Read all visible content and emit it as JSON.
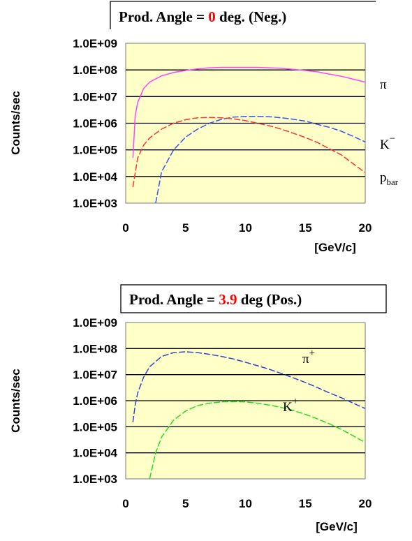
{
  "chart_data": [
    {
      "type": "line",
      "title_parts": [
        "Prod. Angle = ",
        "0",
        " deg. (Neg.)"
      ],
      "title_highlight_color": "#ff0000",
      "ylabel": "Counts/sec",
      "xlabel": "[GeV/c]",
      "y_scale": "log",
      "ylim": [
        1000,
        1000000000
      ],
      "xlim": [
        0,
        20
      ],
      "x_ticks": [
        "0",
        "5",
        "10",
        "15",
        "20"
      ],
      "y_ticks": [
        "1.0E+03",
        "1.0E+04",
        "1.0E+05",
        "1.0E+06",
        "1.0E+07",
        "1.0E+08",
        "1.0E+09"
      ],
      "grid": true,
      "plot_background": "#ffffc8",
      "series": [
        {
          "name": "π",
          "label_parts": [
            "π",
            ""
          ],
          "color": "#ff44ff",
          "dashed": false,
          "x": [
            0.6,
            0.8,
            1,
            1.5,
            2,
            3,
            4,
            5,
            6,
            7,
            8,
            9,
            10,
            11,
            12,
            13,
            14,
            15,
            16,
            17,
            18,
            19,
            20
          ],
          "y": [
            50000,
            2000000,
            6000000,
            20000000,
            35000000,
            60000000,
            80000000,
            95000000,
            110000000,
            120000000,
            125000000,
            125000000,
            125000000,
            125000000,
            120000000,
            115000000,
            105000000,
            95000000,
            85000000,
            70000000,
            58000000,
            45000000,
            35000000
          ]
        },
        {
          "name": "K−",
          "label_parts": [
            "K",
            "−"
          ],
          "color": "#3355ee",
          "dashed": true,
          "x": [
            2.5,
            3,
            4,
            5,
            6,
            7,
            8,
            9,
            10,
            11,
            12,
            13,
            14,
            15,
            16,
            17,
            18,
            19,
            20
          ],
          "y": [
            1000,
            15000,
            100000,
            300000,
            600000,
            1000000,
            1400000,
            1700000,
            1800000,
            1800000,
            1750000,
            1600000,
            1400000,
            1200000,
            900000,
            700000,
            500000,
            320000,
            200000
          ]
        },
        {
          "name": "pbar",
          "label_parts": [
            "p",
            "bar"
          ],
          "color": "#ff3333",
          "dashed": true,
          "x": [
            0.6,
            1,
            1.5,
            2,
            3,
            4,
            5,
            6,
            7,
            8,
            9,
            10,
            11,
            12,
            13,
            14,
            15,
            16,
            17,
            18,
            19,
            20
          ],
          "y": [
            4000,
            50000,
            150000,
            280000,
            600000,
            1000000,
            1350000,
            1600000,
            1650000,
            1600000,
            1450000,
            1250000,
            1000000,
            800000,
            600000,
            420000,
            290000,
            190000,
            110000,
            65000,
            30000,
            14000
          ]
        }
      ]
    },
    {
      "type": "line",
      "title_parts": [
        "Prod. Angle = ",
        "3.9",
        " deg (Pos.)"
      ],
      "title_highlight_color": "#ff0000",
      "ylabel": "Counts/sec",
      "xlabel": "[GeV/c]",
      "y_scale": "log",
      "ylim": [
        1000,
        1000000000
      ],
      "xlim": [
        0,
        20
      ],
      "x_ticks": [
        "0",
        "5",
        "10",
        "15",
        "20"
      ],
      "y_ticks": [
        "1.0E+03",
        "1.0E+04",
        "1.0E+05",
        "1.0E+06",
        "1.0E+07",
        "1.0E+08",
        "1.0E+09"
      ],
      "grid": true,
      "plot_background": "#ffffc8",
      "series": [
        {
          "name": "π+",
          "label_parts": [
            "π",
            "+"
          ],
          "color": "#3344cc",
          "dashed": true,
          "x": [
            0.6,
            0.8,
            1,
            1.5,
            2,
            3,
            4,
            5,
            6,
            7,
            8,
            9,
            10,
            11,
            12,
            13,
            14,
            15,
            16,
            17,
            18,
            19,
            20
          ],
          "y": [
            150000,
            700000,
            2000000,
            8000000,
            20000000,
            50000000,
            70000000,
            75000000,
            70000000,
            60000000,
            50000000,
            40000000,
            30000000,
            22000000,
            16000000,
            11000000,
            7500000,
            5000000,
            3200000,
            2000000,
            1300000,
            800000,
            500000
          ]
        },
        {
          "name": "K+",
          "label_parts": [
            "K",
            "+"
          ],
          "color": "#22dd22",
          "dashed": true,
          "x": [
            2,
            2.5,
            3,
            4,
            5,
            6,
            7,
            8,
            9,
            10,
            11,
            12,
            13,
            14,
            15,
            16,
            17,
            18,
            19,
            20
          ],
          "y": [
            1000,
            10000,
            40000,
            180000,
            400000,
            650000,
            800000,
            900000,
            920000,
            900000,
            800000,
            680000,
            550000,
            420000,
            300000,
            200000,
            130000,
            80000,
            45000,
            25000
          ]
        }
      ]
    }
  ]
}
